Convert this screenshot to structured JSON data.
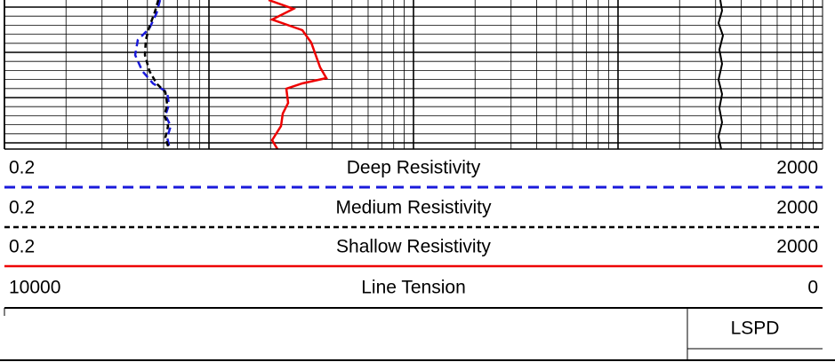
{
  "legend": [
    {
      "min": "0.2",
      "name": "Deep Resistivity",
      "max": "2000"
    },
    {
      "min": "0.2",
      "name": "Medium Resistivity",
      "max": "2000"
    },
    {
      "min": "0.2",
      "name": "Shallow Resistivity",
      "max": "2000"
    },
    {
      "min": "10000",
      "name": "Line Tension",
      "max": "0"
    }
  ],
  "footer": {
    "label": "LSPD"
  }
}
